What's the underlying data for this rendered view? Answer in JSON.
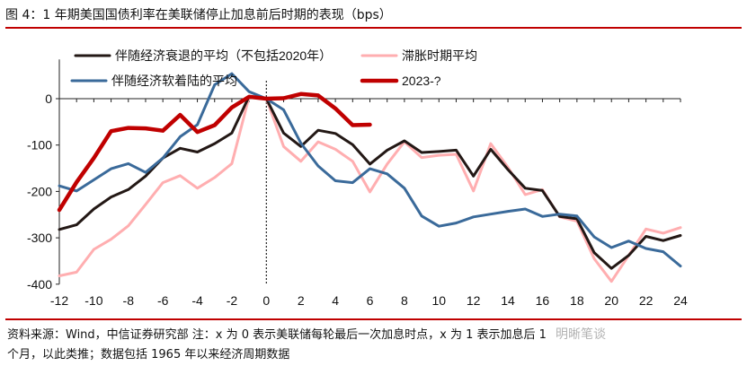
{
  "title": "图 4：1 年期美国国债利率在美联储停止加息前后时期的表现（bps）",
  "footer": {
    "line1": "资料来源：Wind，中信证券研究部   注：x 为 0 表示美联储每轮最后一次加息时点，x 为 1 表示加息后 1",
    "line2": "个月，以此类推；数据包括 1965 年以来经济周期数据",
    "watermark": "明晰笔谈"
  },
  "chart_data": {
    "type": "line",
    "title": "",
    "xlabel": "",
    "ylabel": "",
    "xlim": [
      -12,
      24
    ],
    "ylim": [
      -400,
      100
    ],
    "xticks": [
      -12,
      -10,
      -8,
      -6,
      -4,
      -2,
      0,
      2,
      4,
      6,
      8,
      10,
      12,
      14,
      16,
      18,
      20,
      22,
      24
    ],
    "yticks": [
      0,
      -100,
      -200,
      -300,
      -400
    ],
    "legend_position": "top",
    "x": [
      -12,
      -11,
      -10,
      -9,
      -8,
      -7,
      -6,
      -5,
      -4,
      -3,
      -2,
      -1,
      0,
      1,
      2,
      3,
      4,
      5,
      6,
      7,
      8,
      9,
      10,
      11,
      12,
      13,
      14,
      15,
      16,
      17,
      18,
      19,
      20,
      21,
      22,
      23,
      24
    ],
    "series": [
      {
        "name": "伴随经济衰退的平均（不包括2020年）",
        "color": "#231815",
        "width": 3,
        "values": [
          -282,
          -272,
          -238,
          -212,
          -196,
          -167,
          -128,
          -107,
          -115,
          -97,
          -74,
          5,
          0,
          -74,
          -103,
          -68,
          -75,
          -99,
          -141,
          -111,
          -91,
          -116,
          -114,
          -111,
          -167,
          -109,
          -153,
          -193,
          -198,
          -254,
          -259,
          -332,
          -366,
          -338,
          -297,
          -306,
          -295
        ]
      },
      {
        "name": "滞胀时期平均",
        "color": "#ffaeb0",
        "width": 3,
        "values": [
          -382,
          -374,
          -325,
          -303,
          -274,
          -228,
          -181,
          -166,
          -193,
          -170,
          -140,
          4,
          0,
          -103,
          -135,
          -93,
          -109,
          -135,
          -201,
          -141,
          -93,
          -127,
          -122,
          -120,
          -199,
          -97,
          -148,
          -207,
          -196,
          -255,
          -264,
          -345,
          -394,
          -338,
          -281,
          -290,
          -278
        ]
      },
      {
        "name": "伴随经济软着陆的平均",
        "color": "#3a6a9a",
        "width": 3,
        "values": [
          -188,
          -199,
          -175,
          -151,
          -140,
          -159,
          -128,
          -82,
          -56,
          30,
          54,
          15,
          0,
          -24,
          -96,
          -145,
          -177,
          -181,
          -151,
          -162,
          -193,
          -253,
          -275,
          -268,
          -255,
          -249,
          -243,
          -238,
          -254,
          -249,
          -253,
          -298,
          -321,
          -307,
          -323,
          -330,
          -361
        ]
      },
      {
        "name": "2023-?",
        "color": "#c00000",
        "width": 4.5,
        "values": [
          -240,
          -180,
          -128,
          -70,
          -63,
          -64,
          -69,
          -35,
          -72,
          -57,
          -19,
          4,
          0,
          1,
          10,
          7,
          -21,
          -57,
          -56,
          null,
          null,
          null,
          null,
          null,
          null,
          null,
          null,
          null,
          null,
          null,
          null,
          null,
          null,
          null,
          null,
          null,
          null
        ]
      }
    ]
  }
}
